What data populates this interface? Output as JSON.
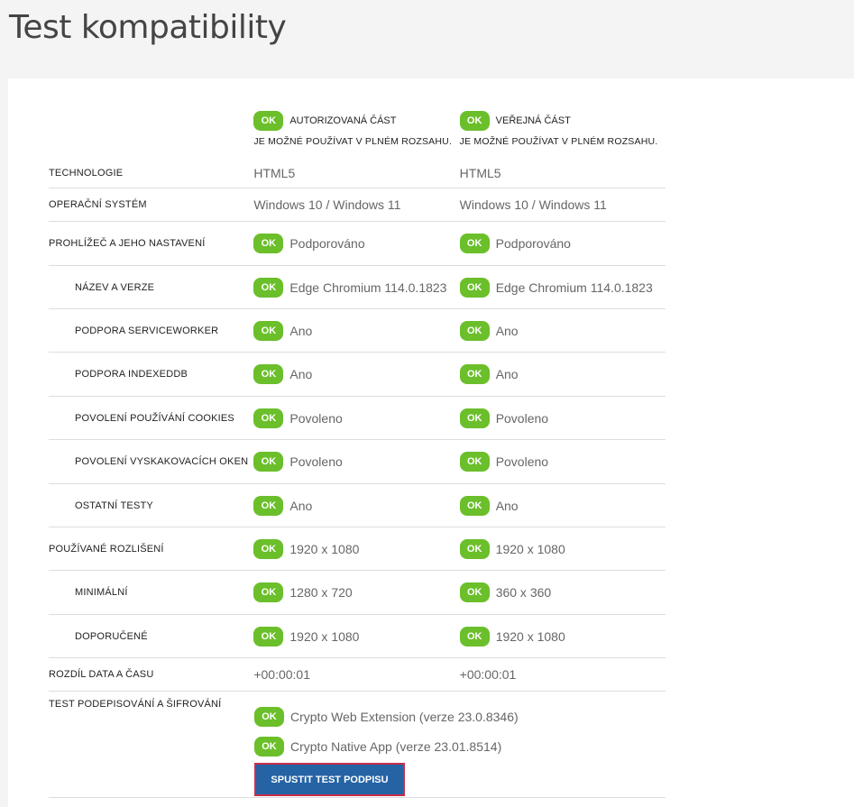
{
  "title": "Test kompatibility",
  "colors": {
    "ok": "#6bbf2a",
    "button": "#2563a5",
    "button_border": "#c8304a"
  },
  "header": {
    "ok": "OK",
    "cols": [
      {
        "title": "AUTORIZOVANÁ ČÁST",
        "status": "JE MOŽNÉ POUŽÍVAT V PLNÉM ROZSAHU."
      },
      {
        "title": "VEŘEJNÁ ČÁST",
        "status": "JE MOŽNÉ POUŽÍVAT V PLNÉM ROZSAHU."
      }
    ]
  },
  "rows": [
    {
      "label": "Technologie",
      "sub": false,
      "ok": false,
      "h": 34,
      "values": [
        "HTML5",
        "HTML5"
      ]
    },
    {
      "label": "Operační systém",
      "sub": false,
      "ok": false,
      "h": 37,
      "values": [
        "Windows 10 / Windows 11",
        "Windows 10 / Windows 11"
      ]
    },
    {
      "label": "Prohlížeč a jeho nastavení",
      "sub": false,
      "ok": true,
      "h": 49,
      "values": [
        "Podporováno",
        "Podporováno"
      ]
    },
    {
      "label": "Název a verze",
      "sub": true,
      "ok": true,
      "h": 48,
      "values": [
        "Edge Chromium 114.0.1823",
        "Edge Chromium 114.0.1823"
      ]
    },
    {
      "label": "Podpora ServiceWorker",
      "sub": true,
      "ok": true,
      "h": 48,
      "values": [
        "Ano",
        "Ano"
      ]
    },
    {
      "label": "Podpora IndexedDB",
      "sub": true,
      "ok": true,
      "h": 49,
      "values": [
        "Ano",
        "Ano"
      ]
    },
    {
      "label": "Povolení používání cookies",
      "sub": true,
      "ok": true,
      "h": 48,
      "values": [
        "Povoleno",
        "Povoleno"
      ]
    },
    {
      "label": "Povolení vyskakovacích oken",
      "sub": true,
      "ok": true,
      "h": 49,
      "values": [
        "Povoleno",
        "Povoleno"
      ]
    },
    {
      "label": "Ostatní testy",
      "sub": true,
      "ok": true,
      "h": 48,
      "values": [
        "Ano",
        "Ano"
      ]
    },
    {
      "label": "Používané rozlišení",
      "sub": false,
      "ok": true,
      "h": 48,
      "values": [
        "1920 x 1080",
        "1920 x 1080"
      ]
    },
    {
      "label": "Minimální",
      "sub": true,
      "ok": true,
      "h": 49,
      "values": [
        "1280 x 720",
        "360 x 360"
      ]
    },
    {
      "label": "Doporučené",
      "sub": true,
      "ok": true,
      "h": 48,
      "values": [
        "1920 x 1080",
        "1920 x 1080"
      ]
    },
    {
      "label": "Rozdíl data a času",
      "sub": false,
      "ok": false,
      "h": 37,
      "values": [
        "+00:00:01",
        "+00:00:01"
      ]
    }
  ],
  "signing": {
    "label": "Test podepisování a šifrování",
    "items": [
      "Crypto Web Extension (verze 23.0.8346)",
      "Crypto Native App (verze 23.01.8514)"
    ],
    "button": "SPUSTIT TEST PODPISU"
  }
}
